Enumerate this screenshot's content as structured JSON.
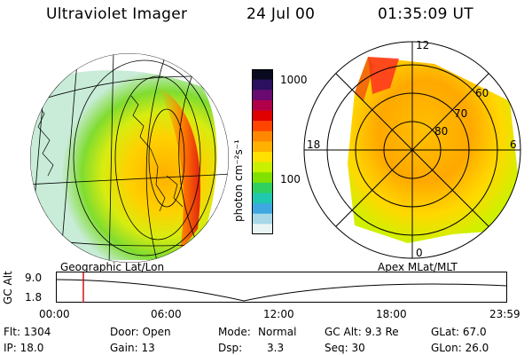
{
  "header": {
    "instrument": "Ultraviolet Imager",
    "date": "24 Jul 00",
    "time": "01:35:09 UT"
  },
  "colorbar": {
    "unit_label": "photon cm⁻²s⁻¹",
    "ticks": [
      "1000",
      "100"
    ],
    "colors": [
      "#0a0a1f",
      "#2b1060",
      "#6a0a70",
      "#b0004a",
      "#e00000",
      "#ff4400",
      "#ff8800",
      "#ffb000",
      "#ffe000",
      "#c8f000",
      "#80e000",
      "#30d060",
      "#20c8b0",
      "#40a8e0",
      "#a8d8e8",
      "#e8f4f4"
    ]
  },
  "left_panel": {
    "label": "Geographic Lat/Lon"
  },
  "right_panel": {
    "label": "Apex MLat/MLT",
    "mlt_labels": [
      "12",
      "18",
      "6",
      "0"
    ],
    "lat_labels": [
      "60",
      "70",
      "80"
    ]
  },
  "timeline": {
    "axis_label": "GC Alt",
    "alt_max": "9.0",
    "alt_min": "1.8",
    "times": [
      "00:00",
      "06:00",
      "12:00",
      "18:00",
      "23:59"
    ],
    "marker_color": "#d00000"
  },
  "footer": {
    "flt": "Flt: 1304",
    "ip": "IP: 18.0",
    "door": "Door: Open",
    "gain": "Gain: 13",
    "mode_label": "Mode:",
    "mode_value": "Normal",
    "dsp_label": "Dsp:",
    "dsp_value": "3.3",
    "gcalt": "GC Alt: 9.3 Re",
    "seq": "Seq: 30",
    "glat": "GLat: 67.0",
    "glon": "GLon: 26.0"
  }
}
